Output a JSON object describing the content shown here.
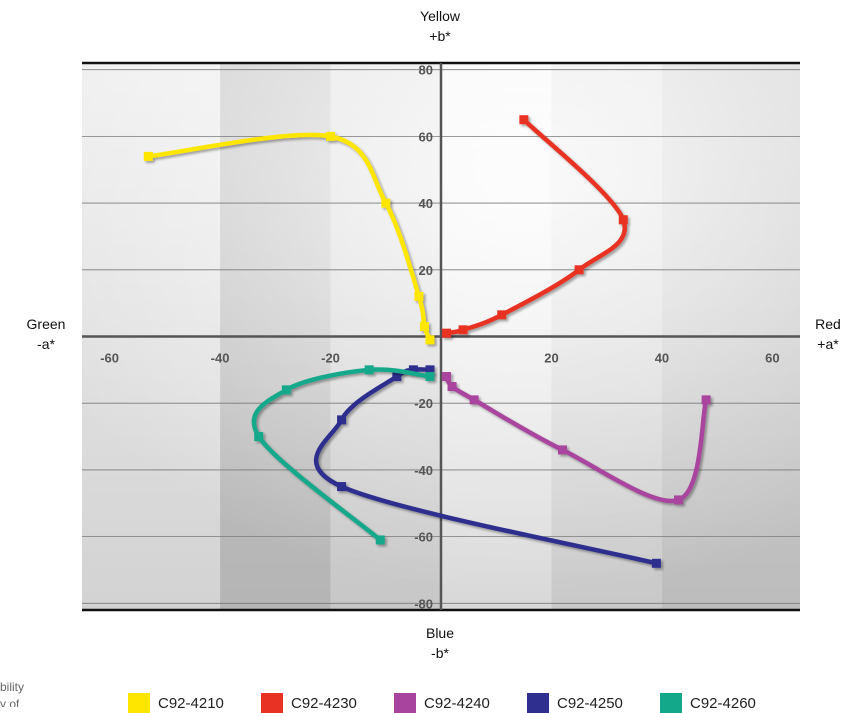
{
  "chart_data": {
    "type": "line",
    "title": "",
    "xlabel": "",
    "ylabel": "",
    "xlim": [
      -65,
      65
    ],
    "ylim": [
      -82,
      82
    ],
    "x_ticks": [
      -60,
      -40,
      -20,
      20,
      40,
      60
    ],
    "y_ticks": [
      80,
      60,
      40,
      20,
      -20,
      -40,
      -60,
      -80
    ],
    "axis_labels": {
      "top": [
        "Yellow",
        "+b*"
      ],
      "bottom": [
        "Blue",
        "-b*"
      ],
      "left": [
        "Green",
        "-a*"
      ],
      "right": [
        "Red",
        "+a*"
      ]
    },
    "legend_position": "bottom",
    "grid": true,
    "series": [
      {
        "name": "C92-4210",
        "color": "#FFE600",
        "points": [
          [
            -53,
            54
          ],
          [
            -20,
            60
          ],
          [
            -10,
            40
          ],
          [
            -4,
            12
          ],
          [
            -3,
            3
          ],
          [
            -2,
            -1
          ]
        ]
      },
      {
        "name": "C92-4230",
        "color": "#E83224",
        "points": [
          [
            1,
            1
          ],
          [
            4,
            2
          ],
          [
            11,
            6.5
          ],
          [
            25,
            20
          ],
          [
            33,
            35
          ],
          [
            15,
            65
          ]
        ]
      },
      {
        "name": "C92-4240",
        "color": "#A9449E",
        "points": [
          [
            1,
            -12
          ],
          [
            2,
            -15
          ],
          [
            6,
            -19
          ],
          [
            22,
            -34
          ],
          [
            43,
            -49
          ],
          [
            48,
            -19
          ]
        ]
      },
      {
        "name": "C92-4250",
        "color": "#2E2F8E",
        "points": [
          [
            -2,
            -10
          ],
          [
            -5,
            -10
          ],
          [
            -8,
            -12
          ],
          [
            -18,
            -25
          ],
          [
            -18,
            -45
          ],
          [
            39,
            -68
          ]
        ]
      },
      {
        "name": "C92-4260",
        "color": "#14A88A",
        "points": [
          [
            -2,
            -12
          ],
          [
            -13,
            -10
          ],
          [
            -28,
            -16
          ],
          [
            -33,
            -30
          ],
          [
            -11,
            -61
          ]
        ]
      }
    ]
  },
  "footer": {
    "cutoff_line1": "bility",
    "cutoff_line2": "y of"
  }
}
